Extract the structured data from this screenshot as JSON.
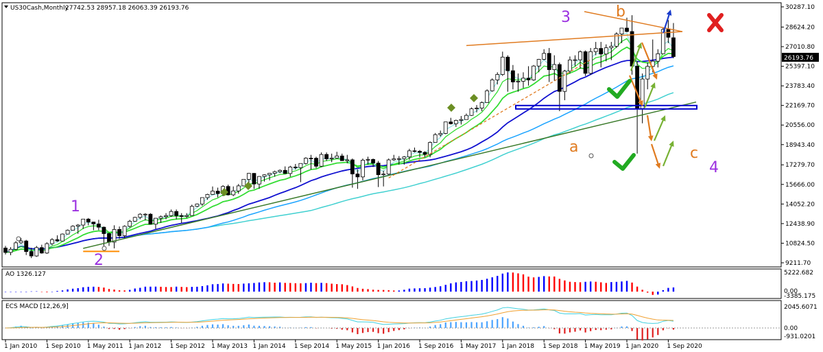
{
  "header": {
    "symbol": "US30Cash,Monthly",
    "ohlc": "27742.53 28957.18 26063.39 26193.76"
  },
  "price_panel": {
    "current_price": "26193.76",
    "ticks": [
      "30287.10",
      "28624.20",
      "27010.80",
      "25397.10",
      "23783.40",
      "22169.70",
      "20556.00",
      "18943.40",
      "17279.70",
      "15666.00",
      "14052.20",
      "12438.90",
      "10824.50",
      "9211.70"
    ]
  },
  "ao_panel": {
    "label": "AO 1326.127",
    "ticks": [
      "5222.682",
      "0.00",
      "-3385.175"
    ]
  },
  "macd_panel": {
    "label": "ECS MACD [12,26,9]",
    "ticks": [
      "2045.6071",
      "0.00",
      "-931.0201"
    ]
  },
  "xaxis": {
    "labels": [
      "1 Jan 2010",
      "1 Sep 2010",
      "1 May 2011",
      "1 Jan 2012",
      "1 Sep 2012",
      "1 May 2013",
      "1 Jan 2014",
      "1 Sep 2014",
      "1 May 2015",
      "1 Jan 2016",
      "1 Sep 2016",
      "1 May 2017",
      "1 Jan 2018",
      "1 Sep 2018",
      "1 May 2019",
      "1 Jan 2020",
      "1 Sep 2020"
    ]
  },
  "annotations": {
    "wave_1": "1",
    "wave_2": "2",
    "wave_3": "3",
    "wave_4": "4",
    "wave_a": "a",
    "wave_b": "b",
    "wave_c": "c"
  },
  "colors": {
    "bull": "#ffffff",
    "bear": "#000000",
    "ema_green": "#33dd33",
    "ema_dark_green": "#1f7f1f",
    "ma_blue": "#1010d0",
    "ma_sky": "#1aa3ff",
    "ma_cyan": "#40d0d0",
    "trend_green": "#3a7a2a",
    "resistance_orange": "#e07b20",
    "support_blue": "#0000cc",
    "wave_purple": "#9b30e0",
    "wave_orange": "#e07b20",
    "ao_up": "#0000ff",
    "ao_down": "#ff0000"
  },
  "chart_data": {
    "type": "candlestick",
    "title": "US30Cash,Monthly",
    "ylim": [
      9211.7,
      30287.1
    ],
    "start": "Jan 2010",
    "candles": [
      [
        10428,
        10600,
        9900,
        10067
      ],
      [
        10067,
        10500,
        9835,
        10325
      ],
      [
        10325,
        11000,
        10250,
        10857
      ],
      [
        10857,
        11260,
        10780,
        11009
      ],
      [
        11009,
        11100,
        9850,
        10137
      ],
      [
        10137,
        10450,
        9600,
        9774
      ],
      [
        9774,
        10600,
        9700,
        10466
      ],
      [
        10466,
        10700,
        9960,
        10015
      ],
      [
        10015,
        10900,
        9950,
        10788
      ],
      [
        10788,
        11250,
        10650,
        11118
      ],
      [
        11118,
        11470,
        10950,
        11006
      ],
      [
        11006,
        11630,
        11000,
        11578
      ],
      [
        11578,
        11950,
        11550,
        11892
      ],
      [
        11892,
        12300,
        11900,
        12226
      ],
      [
        12226,
        12400,
        11600,
        12320
      ],
      [
        12320,
        12800,
        12000,
        12811
      ],
      [
        12811,
        12900,
        12300,
        12570
      ],
      [
        12570,
        12600,
        11900,
        12414
      ],
      [
        12414,
        12750,
        11900,
        12143
      ],
      [
        12143,
        12200,
        10600,
        11614
      ],
      [
        11614,
        11700,
        10600,
        10913
      ],
      [
        10913,
        12300,
        10400,
        11955
      ],
      [
        11955,
        12200,
        11200,
        11446
      ],
      [
        11446,
        12300,
        11200,
        12218
      ],
      [
        12218,
        12750,
        12100,
        12633
      ],
      [
        12633,
        13000,
        12600,
        12952
      ],
      [
        12952,
        13300,
        12800,
        13212
      ],
      [
        13212,
        13300,
        12700,
        13214
      ],
      [
        13214,
        13300,
        12400,
        12393
      ],
      [
        12393,
        12900,
        12000,
        12880
      ],
      [
        12880,
        13100,
        12500,
        13009
      ],
      [
        13009,
        13300,
        12800,
        13091
      ],
      [
        13091,
        13600,
        13000,
        13437
      ],
      [
        13437,
        13600,
        12800,
        13096
      ],
      [
        13096,
        13300,
        12500,
        13026
      ],
      [
        13026,
        13300,
        12900,
        13104
      ],
      [
        13104,
        14000,
        13100,
        13861
      ],
      [
        13861,
        14100,
        13800,
        14054
      ],
      [
        14054,
        14600,
        13900,
        14579
      ],
      [
        14579,
        14900,
        14400,
        14840
      ],
      [
        14840,
        15500,
        14800,
        15116
      ],
      [
        15116,
        15400,
        14600,
        14910
      ],
      [
        14910,
        15600,
        14700,
        15500
      ],
      [
        15500,
        15650,
        14750,
        14810
      ],
      [
        14810,
        15500,
        14700,
        15130
      ],
      [
        15130,
        15700,
        14900,
        15546
      ],
      [
        15546,
        16100,
        15500,
        16086
      ],
      [
        16086,
        16600,
        15700,
        16577
      ],
      [
        16577,
        16600,
        15300,
        15699
      ],
      [
        15699,
        16350,
        15300,
        16322
      ],
      [
        16322,
        16500,
        15900,
        16458
      ],
      [
        16458,
        16600,
        16000,
        16581
      ],
      [
        16581,
        16800,
        16300,
        16717
      ],
      [
        16717,
        16900,
        16600,
        16827
      ],
      [
        16827,
        17150,
        16700,
        16563
      ],
      [
        16563,
        17200,
        16300,
        17098
      ],
      [
        17098,
        17350,
        16900,
        17043
      ],
      [
        17043,
        17400,
        15850,
        17391
      ],
      [
        17391,
        17900,
        17300,
        17828
      ],
      [
        17828,
        18100,
        16900,
        17823
      ],
      [
        17823,
        17950,
        17000,
        17165
      ],
      [
        17165,
        18300,
        17100,
        18133
      ],
      [
        18133,
        18300,
        17600,
        17776
      ],
      [
        17776,
        18200,
        17500,
        17841
      ],
      [
        17841,
        18350,
        17800,
        18011
      ],
      [
        18011,
        18200,
        17700,
        17620
      ],
      [
        17620,
        18100,
        17400,
        17690
      ],
      [
        17690,
        17800,
        15400,
        16528
      ],
      [
        16528,
        16900,
        15300,
        16285
      ],
      [
        16285,
        17800,
        16000,
        17664
      ],
      [
        17664,
        17950,
        17300,
        17720
      ],
      [
        17720,
        17800,
        17100,
        17425
      ],
      [
        17425,
        17600,
        15450,
        16466
      ],
      [
        16466,
        16800,
        15500,
        16517
      ],
      [
        16517,
        17800,
        16400,
        17685
      ],
      [
        17685,
        18100,
        17600,
        17774
      ],
      [
        17774,
        18000,
        17300,
        17787
      ],
      [
        17787,
        18000,
        17300,
        17930
      ],
      [
        17930,
        18600,
        17700,
        18432
      ],
      [
        18432,
        18700,
        18300,
        18401
      ],
      [
        18401,
        18500,
        17900,
        18308
      ],
      [
        18308,
        18400,
        17900,
        18142
      ],
      [
        18142,
        19200,
        17900,
        19124
      ],
      [
        19124,
        19900,
        19100,
        19763
      ],
      [
        19763,
        20100,
        19600,
        19864
      ],
      [
        19864,
        20800,
        19800,
        20812
      ],
      [
        20812,
        21150,
        20600,
        20663
      ],
      [
        20663,
        21000,
        20400,
        20940
      ],
      [
        20940,
        21300,
        20600,
        21009
      ],
      [
        21009,
        21500,
        21000,
        21350
      ],
      [
        21350,
        22000,
        21300,
        21891
      ],
      [
        21891,
        22200,
        21600,
        21948
      ],
      [
        21948,
        22500,
        21700,
        22405
      ],
      [
        22405,
        23500,
        22400,
        23377
      ],
      [
        23377,
        24400,
        23300,
        24272
      ],
      [
        24272,
        24900,
        23900,
        24719
      ],
      [
        24719,
        26600,
        24600,
        26149
      ],
      [
        26149,
        26300,
        23300,
        25029
      ],
      [
        25029,
        25500,
        23500,
        24103
      ],
      [
        24103,
        24800,
        23300,
        24163
      ],
      [
        24163,
        24900,
        23600,
        24416
      ],
      [
        24416,
        25400,
        23800,
        24271
      ],
      [
        24271,
        25500,
        24200,
        25415
      ],
      [
        25415,
        26000,
        24900,
        25965
      ],
      [
        25965,
        26800,
        25900,
        26458
      ],
      [
        26458,
        26900,
        24100,
        25116
      ],
      [
        25116,
        26300,
        24200,
        25538
      ],
      [
        25538,
        25700,
        21700,
        23327
      ],
      [
        23327,
        25100,
        22600,
        24999
      ],
      [
        24999,
        26200,
        24800,
        25916
      ],
      [
        25916,
        26300,
        25400,
        25929
      ],
      [
        25929,
        26700,
        25200,
        26593
      ],
      [
        26593,
        26700,
        24600,
        24815
      ],
      [
        24815,
        26900,
        24700,
        26600
      ],
      [
        26600,
        27400,
        26300,
        26864
      ],
      [
        26864,
        27400,
        25300,
        26403
      ],
      [
        26403,
        27200,
        25800,
        26917
      ],
      [
        26917,
        27400,
        25900,
        27046
      ],
      [
        27046,
        28200,
        26900,
        28051
      ],
      [
        28051,
        28400,
        27300,
        28538
      ],
      [
        28538,
        29400,
        28200,
        28256
      ],
      [
        28256,
        29600,
        24700,
        25409
      ],
      [
        25409,
        25800,
        18200,
        21917
      ],
      [
        21917,
        24800,
        20700,
        24346
      ],
      [
        24346,
        25700,
        23500,
        25383
      ],
      [
        25383,
        27600,
        24900,
        25813
      ],
      [
        25813,
        26800,
        25300,
        26428
      ],
      [
        26428,
        28600,
        26400,
        28430
      ],
      [
        28430,
        29200,
        27300,
        27782
      ],
      [
        27742,
        28957,
        26063,
        26194
      ]
    ]
  }
}
